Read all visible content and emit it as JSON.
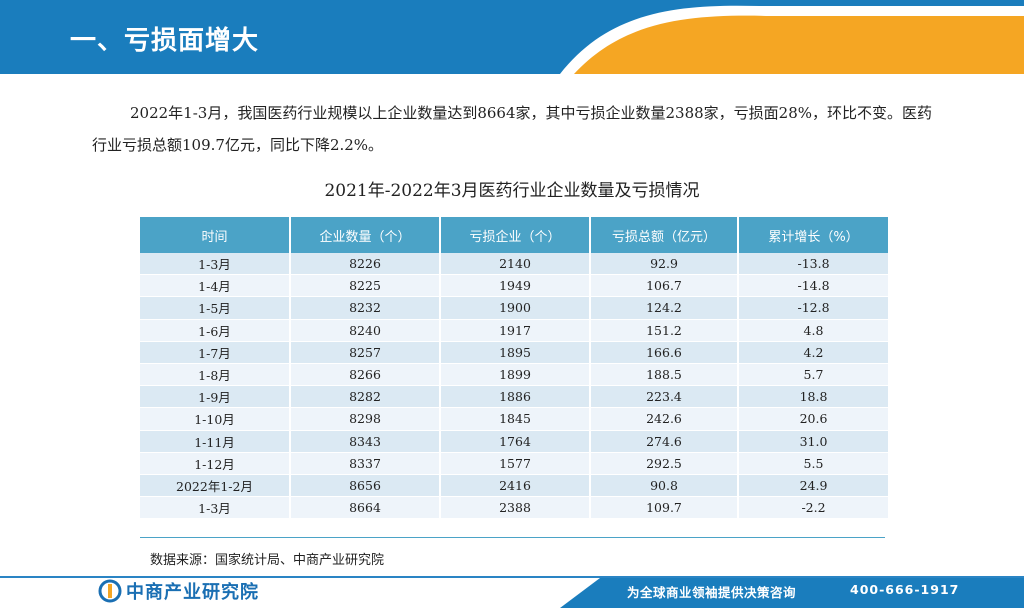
{
  "header": {
    "title": "一、亏损面增大"
  },
  "paragraph": "2022年1-3月，我国医药行业规模以上企业数量达到8664家，其中亏损企业数量2388家，亏损面28%，环比不变。医药行业亏损总额109.7亿元，同比下降2.2%。",
  "table": {
    "title": "2021年-2022年3月医药行业企业数量及亏损情况",
    "columns": [
      "时间",
      "企业数量（个）",
      "亏损企业（个）",
      "亏损总额（亿元）",
      "累计增长（%）"
    ],
    "rows": [
      [
        "1-3月",
        "8226",
        "2140",
        "92.9",
        "-13.8"
      ],
      [
        "1-4月",
        "8225",
        "1949",
        "106.7",
        "-14.8"
      ],
      [
        "1-5月",
        "8232",
        "1900",
        "124.2",
        "-12.8"
      ],
      [
        "1-6月",
        "8240",
        "1917",
        "151.2",
        "4.8"
      ],
      [
        "1-7月",
        "8257",
        "1895",
        "166.6",
        "4.2"
      ],
      [
        "1-8月",
        "8266",
        "1899",
        "188.5",
        "5.7"
      ],
      [
        "1-9月",
        "8282",
        "1886",
        "223.4",
        "18.8"
      ],
      [
        "1-10月",
        "8298",
        "1845",
        "242.6",
        "20.6"
      ],
      [
        "1-11月",
        "8343",
        "1764",
        "274.6",
        "31.0"
      ],
      [
        "1-12月",
        "8337",
        "1577",
        "292.5",
        "5.5"
      ],
      [
        "2022年1-2月",
        "8656",
        "2416",
        "90.8",
        "24.9"
      ],
      [
        "1-3月",
        "8664",
        "2388",
        "109.7",
        "-2.2"
      ]
    ]
  },
  "source": "数据来源：国家统计局、中商产业研究院",
  "footer": {
    "logo_text": "中商产业研究院",
    "slogan": "为全球商业领袖提供决策咨询",
    "phone": "400-666-1917"
  },
  "colors": {
    "header_blue": "#1a7dbd",
    "accent_orange": "#f5a623",
    "table_header": "#4ba3c7"
  }
}
